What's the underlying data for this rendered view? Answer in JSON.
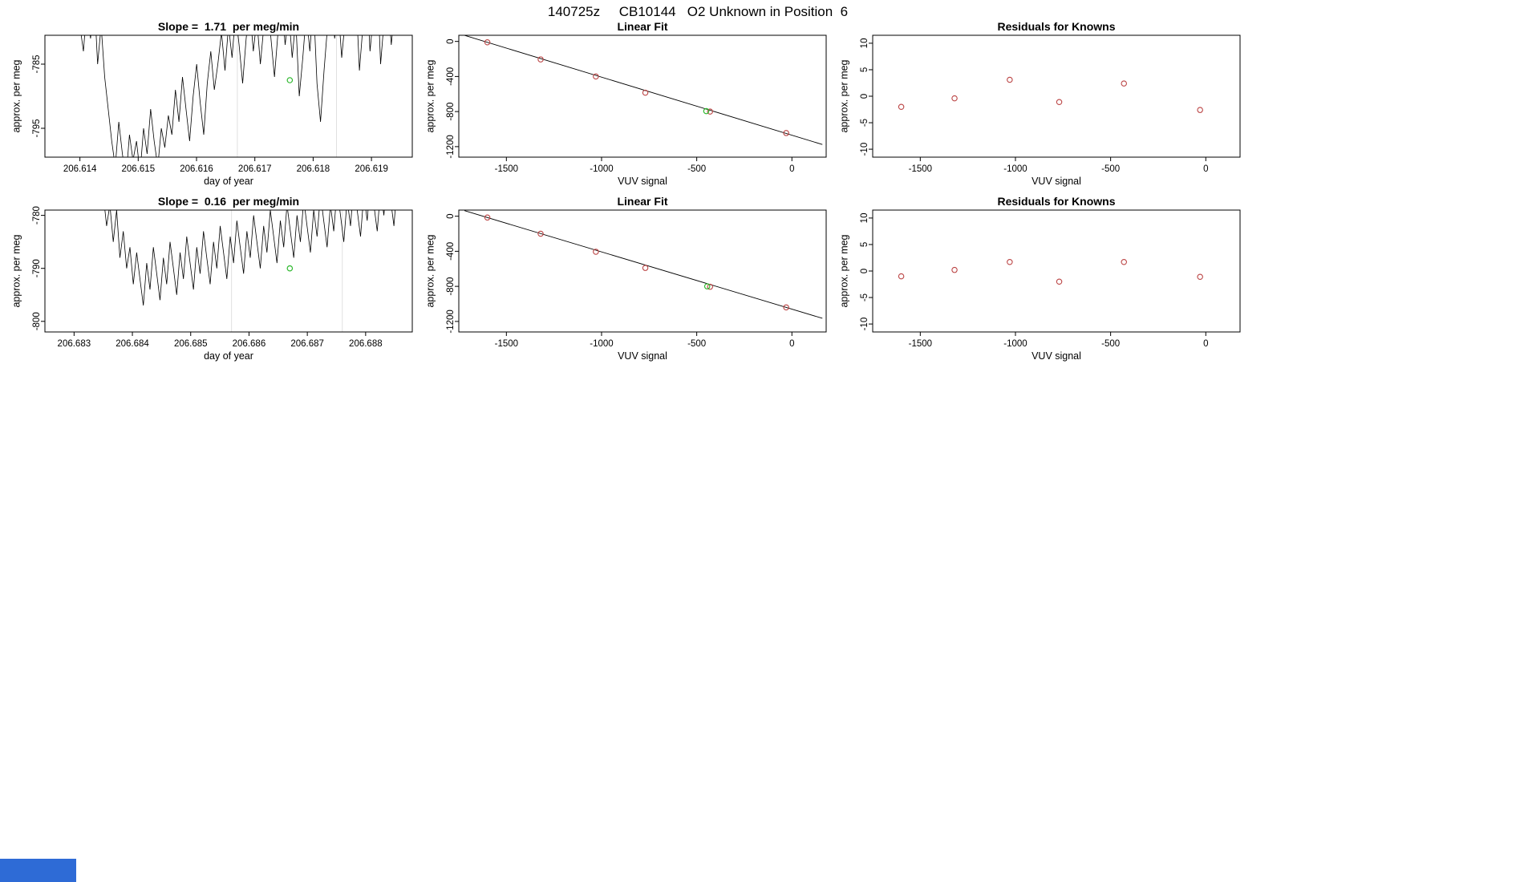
{
  "page": {
    "title": "140725z     CB10144   O2 Unknown in Position  6",
    "background": "#ffffff"
  },
  "colors": {
    "point_red": "#bb4444",
    "marker_green": "#2eb82e",
    "line_black": "#000000",
    "gridline": "#e0e0e0",
    "frame": "#000000",
    "taskbar_blue": "#2e6bd6"
  },
  "chart_data": [
    {
      "type": "line",
      "title": "Slope =  1.71  per meg/min",
      "xlabel": "day of year",
      "ylabel": "approx. per meg",
      "xlim": [
        206.6134,
        206.6197
      ],
      "ylim": [
        -799.5,
        -780.5
      ],
      "xticks": [
        206.614,
        206.615,
        206.616,
        206.617,
        206.618,
        206.619
      ],
      "xtick_labels": [
        "206.614",
        "206.615",
        "206.616",
        "206.617",
        "206.618",
        "206.619"
      ],
      "yticks": [
        -795,
        -785
      ],
      "ytick_labels": [
        "-795",
        "-785"
      ],
      "vlines": [
        206.6167,
        206.6184
      ],
      "line_series": {
        "x_start": 206.614,
        "x_end": 206.6194,
        "y": [
          -779,
          -783,
          -776,
          -781,
          -774,
          -785,
          -779,
          -787,
          -792,
          -797,
          -801,
          -794,
          -799,
          -803,
          -796,
          -800,
          -797,
          -802,
          -795,
          -799,
          -792,
          -797,
          -801,
          -795,
          -798,
          -793,
          -796,
          -789,
          -794,
          -787,
          -792,
          -797,
          -790,
          -785,
          -791,
          -796,
          -788,
          -783,
          -789,
          -785,
          -780,
          -786,
          -779,
          -784,
          -777,
          -782,
          -788,
          -781,
          -776,
          -783,
          -778,
          -785,
          -779,
          -774,
          -781,
          -787,
          -780,
          -775,
          -782,
          -777,
          -784,
          -778,
          -790,
          -784,
          -777,
          -783,
          -775,
          -788,
          -794,
          -786,
          -779,
          -773,
          -781,
          -776,
          -784,
          -778,
          -772,
          -780,
          -774,
          -786,
          -779,
          -772,
          -783,
          -777,
          -771,
          -785,
          -778,
          -774,
          -782,
          -776
        ]
      },
      "green_point": {
        "x": 206.6176,
        "y": -787.5
      }
    },
    {
      "type": "scatter",
      "title": "Linear Fit",
      "xlabel": "VUV signal",
      "ylabel": "approx. per meg",
      "xlim": [
        -1750,
        180
      ],
      "ylim": [
        -1320,
        70
      ],
      "xticks": [
        -1500,
        -1000,
        -500,
        0
      ],
      "xtick_labels": [
        "-1500",
        "-1000",
        "-500",
        "0"
      ],
      "yticks": [
        -1200,
        -800,
        -400,
        0
      ],
      "ytick_labels": [
        "-1200",
        "-800",
        "-400",
        "0"
      ],
      "fit_line": {
        "x": [
          -1720,
          160
        ],
        "y": [
          69.5,
          -1175.8
        ]
      },
      "points": {
        "x": [
          -1600,
          -1320,
          -1030,
          -770,
          -430,
          -30
        ],
        "y": [
          -10,
          -205,
          -400,
          -585,
          -800,
          -1045
        ]
      },
      "green_point": {
        "x": -450,
        "y": -795
      }
    },
    {
      "type": "scatter",
      "title": "Residuals for Knowns",
      "xlabel": "VUV signal",
      "ylabel": "approx. per meg",
      "xlim": [
        -1750,
        180
      ],
      "ylim": [
        -11.5,
        11.5
      ],
      "xticks": [
        -1500,
        -1000,
        -500,
        0
      ],
      "xtick_labels": [
        "-1500",
        "-1000",
        "-500",
        "0"
      ],
      "yticks": [
        -10,
        -5,
        0,
        5,
        10
      ],
      "ytick_labels": [
        "-10",
        "-5",
        "0",
        "5",
        "10"
      ],
      "points": {
        "x": [
          -1600,
          -1320,
          -1030,
          -770,
          -430,
          -30
        ],
        "y": [
          -2,
          -0.4,
          3.1,
          -1.1,
          2.4,
          -2.6
        ]
      }
    },
    {
      "type": "line",
      "title": "Slope =  0.16  per meg/min",
      "xlabel": "day of year",
      "ylabel": "approx. per meg",
      "xlim": [
        206.6825,
        206.6888
      ],
      "ylim": [
        -802,
        -779
      ],
      "xticks": [
        206.683,
        206.684,
        206.685,
        206.686,
        206.687,
        206.688
      ],
      "xtick_labels": [
        "206.683",
        "206.684",
        "206.685",
        "206.686",
        "206.687",
        "206.688"
      ],
      "yticks": [
        -800,
        -790,
        -780
      ],
      "ytick_labels": [
        "-800",
        "-790",
        "-780"
      ],
      "vlines": [
        206.6857,
        206.6876
      ],
      "line_series": {
        "x_start": 206.6835,
        "x_end": 206.6886,
        "y": [
          -776,
          -782,
          -778,
          -785,
          -779,
          -788,
          -783,
          -790,
          -786,
          -793,
          -787,
          -792,
          -797,
          -789,
          -794,
          -786,
          -791,
          -796,
          -788,
          -793,
          -785,
          -790,
          -795,
          -787,
          -792,
          -784,
          -789,
          -794,
          -786,
          -791,
          -783,
          -788,
          -793,
          -785,
          -790,
          -782,
          -787,
          -792,
          -784,
          -789,
          -781,
          -786,
          -791,
          -783,
          -788,
          -780,
          -785,
          -790,
          -782,
          -787,
          -779,
          -784,
          -789,
          -781,
          -786,
          -778,
          -783,
          -788,
          -780,
          -785,
          -777,
          -782,
          -787,
          -779,
          -784,
          -776,
          -781,
          -786,
          -778,
          -783,
          -775,
          -780,
          -785,
          -777,
          -782,
          -774,
          -779,
          -784,
          -776,
          -781,
          -773,
          -778,
          -783,
          -775,
          -780,
          -772,
          -777,
          -782,
          -774,
          -779
        ]
      },
      "green_point": {
        "x": 206.6867,
        "y": -790
      }
    },
    {
      "type": "scatter",
      "title": "Linear Fit",
      "xlabel": "VUV signal",
      "ylabel": "approx. per meg",
      "xlim": [
        -1750,
        180
      ],
      "ylim": [
        -1320,
        70
      ],
      "xticks": [
        -1500,
        -1000,
        -500,
        0
      ],
      "xtick_labels": [
        "-1500",
        "-1000",
        "-500",
        "0"
      ],
      "yticks": [
        -1200,
        -800,
        -400,
        0
      ],
      "ytick_labels": [
        "-1200",
        "-800",
        "-400",
        "0"
      ],
      "fit_line": {
        "x": [
          -1720,
          160
        ],
        "y": [
          63.3,
          -1164.1
        ]
      },
      "points": {
        "x": [
          -1600,
          -1320,
          -1030,
          -770,
          -430,
          -30
        ],
        "y": [
          -15,
          -200,
          -405,
          -590,
          -805,
          -1040
        ]
      },
      "green_point": {
        "x": -445,
        "y": -800
      }
    },
    {
      "type": "scatter",
      "title": "Residuals for Knowns",
      "xlabel": "VUV signal",
      "ylabel": "approx. per meg",
      "xlim": [
        -1750,
        180
      ],
      "ylim": [
        -11.5,
        11.5
      ],
      "xticks": [
        -1500,
        -1000,
        -500,
        0
      ],
      "xtick_labels": [
        "-1500",
        "-1000",
        "-500",
        "0"
      ],
      "yticks": [
        -10,
        -5,
        0,
        5,
        10
      ],
      "ytick_labels": [
        "-10",
        "-5",
        "0",
        "5",
        "10"
      ],
      "points": {
        "x": [
          -1600,
          -1320,
          -1030,
          -770,
          -430,
          -30
        ],
        "y": [
          -1,
          0.2,
          1.7,
          -2,
          1.7,
          -1.1
        ]
      }
    }
  ]
}
